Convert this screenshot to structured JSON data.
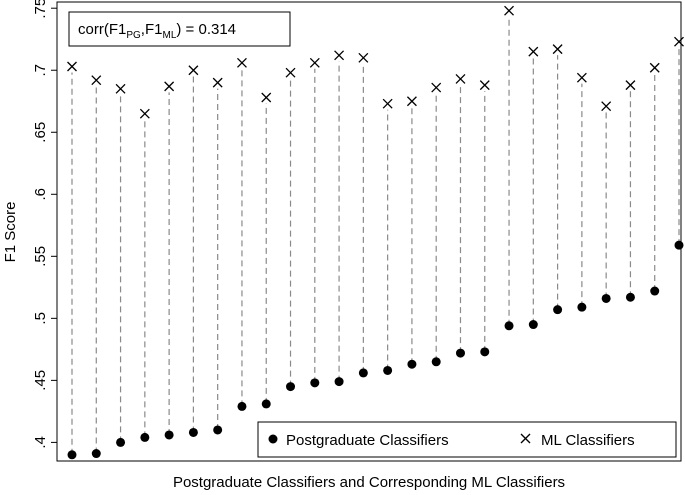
{
  "chart_data": {
    "type": "scatter",
    "xlabel": "Postgraduate Classifiers and Corresponding ML Classifiers",
    "ylabel": "F1 Score",
    "ylim": [
      0.385,
      0.755
    ],
    "yticks": [
      ".4",
      ".45",
      ".5",
      ".55",
      ".6",
      ".65",
      ".7",
      ".75"
    ],
    "ytick_values": [
      0.4,
      0.45,
      0.5,
      0.55,
      0.6,
      0.65,
      0.7,
      0.75
    ],
    "grid": false,
    "connectors": "dashed",
    "legend_placement": "bottom-right",
    "annotation": {
      "prefix": "corr(F1",
      "sub1": "PG",
      "mid": ",F1",
      "sub2": "ML",
      "suffix": ") = 0.314"
    },
    "x": [
      1,
      2,
      3,
      4,
      5,
      6,
      7,
      8,
      9,
      10,
      11,
      12,
      13,
      14,
      15,
      16,
      17,
      18,
      19,
      20,
      21,
      22,
      23,
      24,
      25,
      26
    ],
    "series": [
      {
        "name": "Postgraduate Classifiers",
        "marker": "dot",
        "color": "#000000",
        "values": [
          0.39,
          0.391,
          0.4,
          0.404,
          0.406,
          0.408,
          0.41,
          0.429,
          0.431,
          0.445,
          0.448,
          0.449,
          0.456,
          0.458,
          0.463,
          0.465,
          0.472,
          0.473,
          0.494,
          0.495,
          0.507,
          0.509,
          0.516,
          0.517,
          0.522,
          0.559
        ]
      },
      {
        "name": "ML Classifiers",
        "marker": "x",
        "color": "#000000",
        "values": [
          0.703,
          0.692,
          0.685,
          0.665,
          0.687,
          0.7,
          0.69,
          0.706,
          0.678,
          0.698,
          0.706,
          0.712,
          0.71,
          0.673,
          0.675,
          0.686,
          0.693,
          0.688,
          0.748,
          0.715,
          0.717,
          0.694,
          0.671,
          0.688,
          0.702,
          0.723
        ]
      }
    ]
  }
}
